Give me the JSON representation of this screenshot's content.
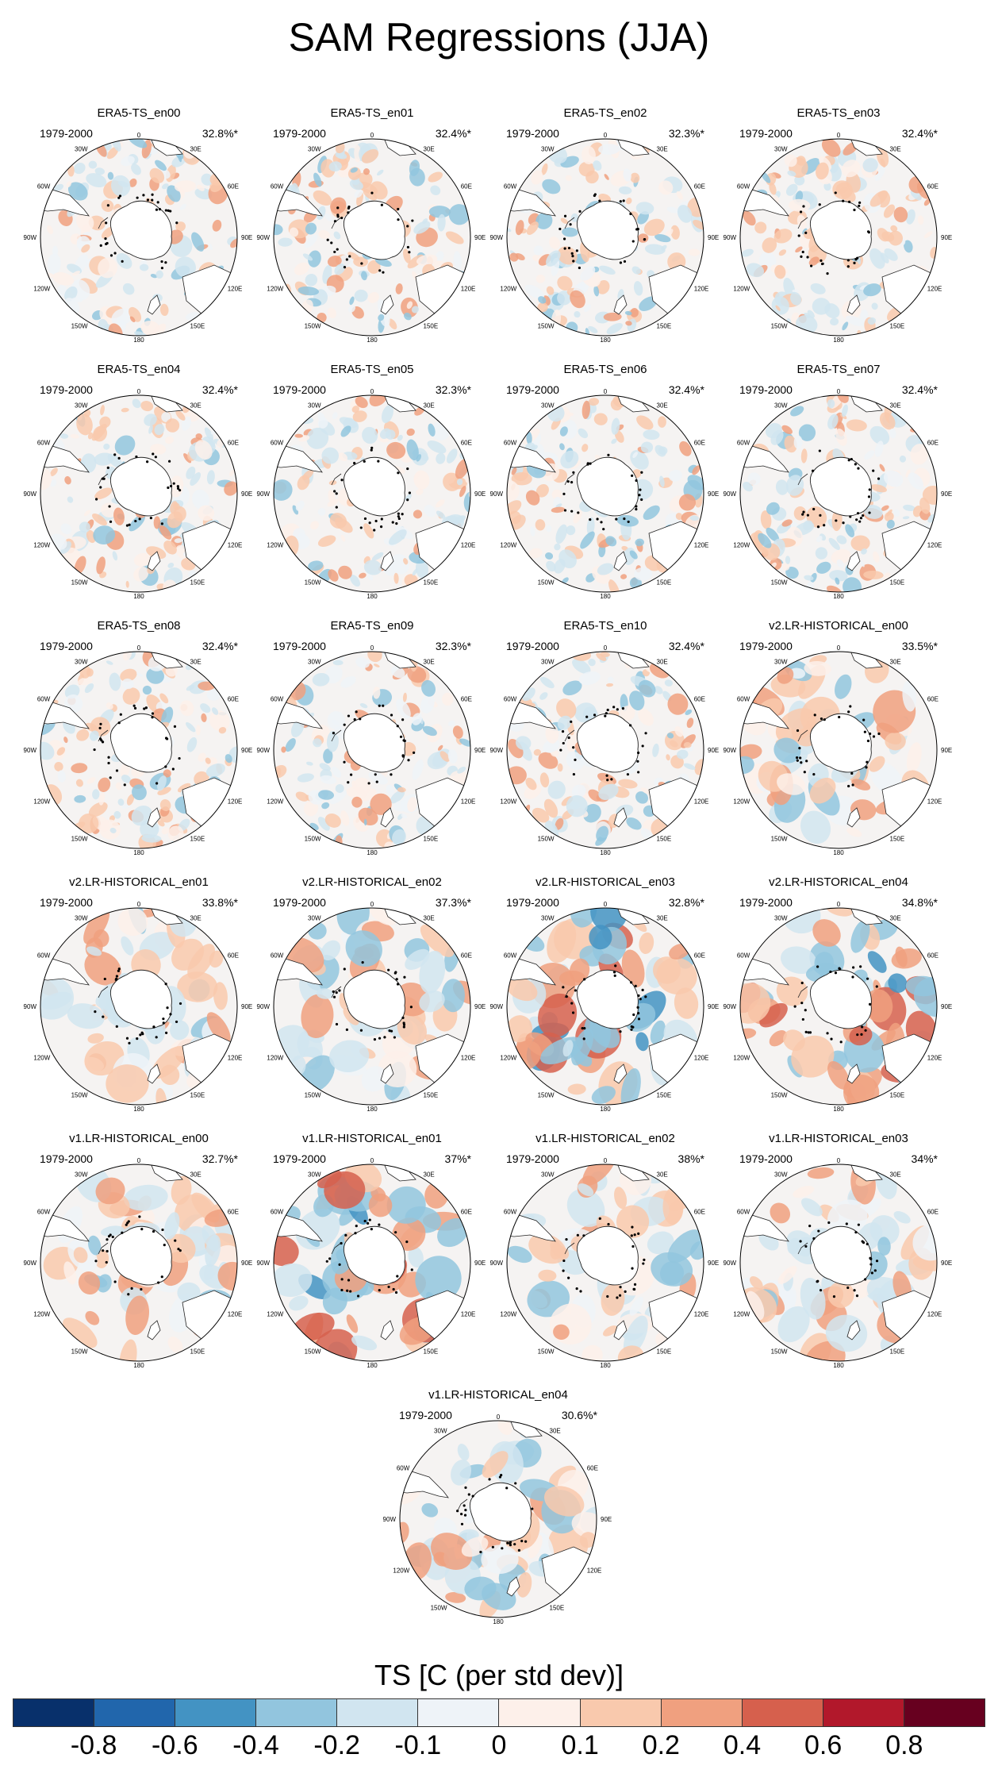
{
  "title": "SAM Regressions (JJA)",
  "period": "1979-2000",
  "lon_labels": [
    "0",
    "30E",
    "60E",
    "90E",
    "120E",
    "150E",
    "180",
    "150W",
    "120W",
    "90W",
    "60W",
    "30W"
  ],
  "panels": [
    {
      "name": "ERA5-TS_en00",
      "pct": "32.8%*",
      "style": "noisy"
    },
    {
      "name": "ERA5-TS_en01",
      "pct": "32.4%*",
      "style": "noisy"
    },
    {
      "name": "ERA5-TS_en02",
      "pct": "32.3%*",
      "style": "noisy"
    },
    {
      "name": "ERA5-TS_en03",
      "pct": "32.4%*",
      "style": "noisy"
    },
    {
      "name": "ERA5-TS_en04",
      "pct": "32.4%*",
      "style": "noisy"
    },
    {
      "name": "ERA5-TS_en05",
      "pct": "32.3%*",
      "style": "noisy"
    },
    {
      "name": "ERA5-TS_en06",
      "pct": "32.4%*",
      "style": "noisy"
    },
    {
      "name": "ERA5-TS_en07",
      "pct": "32.4%*",
      "style": "noisy"
    },
    {
      "name": "ERA5-TS_en08",
      "pct": "32.4%*",
      "style": "noisy"
    },
    {
      "name": "ERA5-TS_en09",
      "pct": "32.3%*",
      "style": "noisy"
    },
    {
      "name": "ERA5-TS_en10",
      "pct": "32.4%*",
      "style": "noisy"
    },
    {
      "name": "v2.LR-HISTORICAL_en00",
      "pct": "33.5%*",
      "style": "smooth"
    },
    {
      "name": "v2.LR-HISTORICAL_en01",
      "pct": "33.8%*",
      "style": "smooth"
    },
    {
      "name": "v2.LR-HISTORICAL_en02",
      "pct": "37.3%*",
      "style": "smooth"
    },
    {
      "name": "v2.LR-HISTORICAL_en03",
      "pct": "32.8%*",
      "style": "strong"
    },
    {
      "name": "v2.LR-HISTORICAL_en04",
      "pct": "34.8%*",
      "style": "strong"
    },
    {
      "name": "v1.LR-HISTORICAL_en00",
      "pct": "32.7%*",
      "style": "smooth"
    },
    {
      "name": "v1.LR-HISTORICAL_en01",
      "pct": "37%*",
      "style": "strong"
    },
    {
      "name": "v1.LR-HISTORICAL_en02",
      "pct": "38%*",
      "style": "smooth"
    },
    {
      "name": "v1.LR-HISTORICAL_en03",
      "pct": "34%*",
      "style": "smooth"
    },
    {
      "name": "v1.LR-HISTORICAL_en04",
      "pct": "30.6%*",
      "style": "smooth"
    }
  ],
  "colorbar": {
    "title": "TS [C (per std dev)]",
    "colors": [
      "#08306b",
      "#2166ac",
      "#4393c3",
      "#92c5de",
      "#d1e5f0",
      "#eef3f8",
      "#fdf0ea",
      "#f9c9ad",
      "#f0a07f",
      "#d6604d",
      "#b2182b",
      "#67001f"
    ],
    "labels": [
      "-0.8",
      "-0.6",
      "-0.4",
      "-0.2",
      "-0.1",
      "0",
      "0.1",
      "0.2",
      "0.4",
      "0.6",
      "0.8"
    ]
  }
}
